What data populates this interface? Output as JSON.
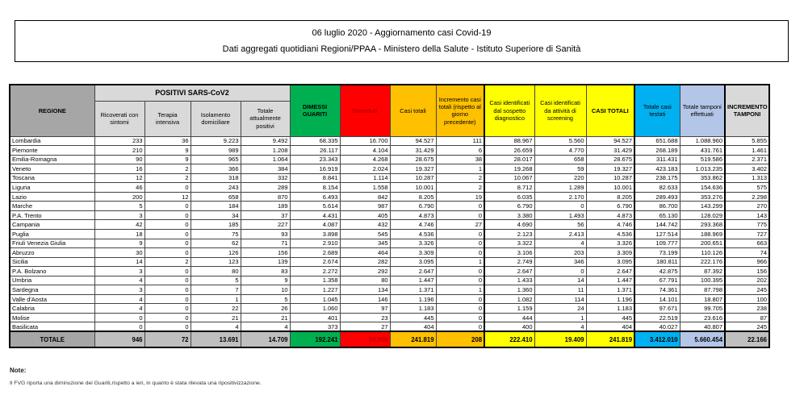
{
  "page_header": {
    "line1": "06 luglio 2020 - Aggiornamento casi Covid-19",
    "line2": "Dati aggregati quotidiani Regioni/PPAA - Ministero della Salute - Istituto Superiore di Sanità"
  },
  "table": {
    "group_header": "POSITIVI SARS-CoV2",
    "columns": [
      "REGIONE",
      "Ricoverati con sintomi",
      "Terapia intensiva",
      "Isolamento domiciliare",
      "Totale attualmente positivi",
      "DIMESSI GUARITI",
      "Deceduti",
      "Casi totali",
      "Incremento casi totali (rispetto al giorno precedente)",
      "Casi identificati dal sospetto diagnostico",
      "Casi identificati da attività di screening",
      "CASI TOTALI",
      "Totale casi testati",
      "Totale tamponi effettuati",
      "INCREMENTO TAMPONI"
    ],
    "rows": [
      [
        "Lombardia",
        "233",
        "36",
        "9.223",
        "9.492",
        "68.335",
        "16.700",
        "94.527",
        "111",
        "88.967",
        "5.560",
        "94.527",
        "651.688",
        "1.088.960",
        "5.855"
      ],
      [
        "Piemonte",
        "210",
        "9",
        "989",
        "1.208",
        "26.117",
        "4.104",
        "31.429",
        "6",
        "26.659",
        "4.770",
        "31.429",
        "268.189",
        "431.761",
        "1.461"
      ],
      [
        "Emilia-Romagna",
        "90",
        "9",
        "965",
        "1.064",
        "23.343",
        "4.268",
        "28.675",
        "38",
        "28.017",
        "658",
        "28.675",
        "311.431",
        "519.586",
        "2.371"
      ],
      [
        "Veneto",
        "16",
        "2",
        "366",
        "384",
        "16.919",
        "2.024",
        "19.327",
        "1",
        "19.268",
        "59",
        "19.327",
        "423.183",
        "1.013.235",
        "3.402"
      ],
      [
        "Toscana",
        "12",
        "2",
        "318",
        "332",
        "8.841",
        "1.114",
        "10.287",
        "2",
        "10.067",
        "220",
        "10.287",
        "238.175",
        "353.862",
        "1.313"
      ],
      [
        "Liguria",
        "46",
        "0",
        "243",
        "289",
        "8.154",
        "1.558",
        "10.001",
        "2",
        "8.712",
        "1.289",
        "10.001",
        "82.633",
        "154.636",
        "575"
      ],
      [
        "Lazio",
        "200",
        "12",
        "658",
        "870",
        "6.493",
        "842",
        "8.205",
        "19",
        "6.035",
        "2.170",
        "8.205",
        "289.493",
        "353.276",
        "2.298"
      ],
      [
        "Marche",
        "5",
        "0",
        "184",
        "189",
        "5.614",
        "987",
        "6.790",
        "0",
        "6.790",
        "0",
        "6.790",
        "86.700",
        "143.299",
        "270"
      ],
      [
        "P.A. Trento",
        "3",
        "0",
        "34",
        "37",
        "4.431",
        "405",
        "4.873",
        "0",
        "3.380",
        "1.493",
        "4.873",
        "65.130",
        "128.029",
        "143"
      ],
      [
        "Campania",
        "42",
        "0",
        "185",
        "227",
        "4.087",
        "432",
        "4.746",
        "27",
        "4.690",
        "56",
        "4.746",
        "144.742",
        "293.368",
        "775"
      ],
      [
        "Puglia",
        "18",
        "0",
        "75",
        "93",
        "3.898",
        "545",
        "4.536",
        "0",
        "2.123",
        "2.413",
        "4.536",
        "127.514",
        "188.969",
        "727"
      ],
      [
        "Friuli Venezia Giulia",
        "9",
        "0",
        "62",
        "71",
        "2.910",
        "345",
        "3.326",
        "0",
        "3.322",
        "4",
        "3.326",
        "109.777",
        "200.651",
        "663"
      ],
      [
        "Abruzzo",
        "30",
        "0",
        "126",
        "156",
        "2.689",
        "464",
        "3.309",
        "0",
        "3.106",
        "203",
        "3.309",
        "73.199",
        "110.126",
        "74"
      ],
      [
        "Sicilia",
        "14",
        "2",
        "123",
        "139",
        "2.674",
        "282",
        "3.095",
        "1",
        "2.749",
        "346",
        "3.095",
        "180.811",
        "222.176",
        "966"
      ],
      [
        "P.A. Bolzano",
        "3",
        "0",
        "80",
        "83",
        "2.272",
        "292",
        "2.647",
        "0",
        "2.647",
        "0",
        "2.647",
        "42.875",
        "87.392",
        "156"
      ],
      [
        "Umbria",
        "4",
        "0",
        "5",
        "9",
        "1.358",
        "80",
        "1.447",
        "0",
        "1.433",
        "14",
        "1.447",
        "67.791",
        "100.395",
        "202"
      ],
      [
        "Sardegna",
        "3",
        "0",
        "7",
        "10",
        "1.227",
        "134",
        "1.371",
        "1",
        "1.360",
        "11",
        "1.371",
        "74.361",
        "87.798",
        "245"
      ],
      [
        "Valle d'Aosta",
        "4",
        "0",
        "1",
        "5",
        "1.045",
        "146",
        "1.196",
        "0",
        "1.082",
        "114",
        "1.196",
        "14.101",
        "18.807",
        "100"
      ],
      [
        "Calabria",
        "4",
        "0",
        "22",
        "26",
        "1.060",
        "97",
        "1.183",
        "0",
        "1.159",
        "24",
        "1.183",
        "97.671",
        "99.705",
        "238"
      ],
      [
        "Molise",
        "0",
        "0",
        "21",
        "21",
        "401",
        "23",
        "445",
        "0",
        "444",
        "1",
        "445",
        "22.519",
        "23.616",
        "87"
      ],
      [
        "Basilicata",
        "0",
        "0",
        "4",
        "4",
        "373",
        "27",
        "404",
        "0",
        "400",
        "4",
        "404",
        "40.027",
        "40.807",
        "245"
      ]
    ],
    "total_row": [
      "TOTALE",
      "946",
      "72",
      "13.691",
      "14.709",
      "192.241",
      "34.869",
      "241.819",
      "208",
      "222.410",
      "19.409",
      "241.819",
      "3.412.010",
      "5.660.454",
      "22.166"
    ]
  },
  "notes": {
    "title": "Note:",
    "line1": "Il FVG  riporta una diminuzione dei Guariti,rispetto a ieri,  in quanto è stata rilevata una ripositivizzazione."
  },
  "colors": {
    "green": "#00B050",
    "red": "#FF0000",
    "red_text": "#C00000",
    "orange": "#FFC000",
    "yellow": "#FFFF00",
    "cyan": "#00B0F0",
    "lavender": "#B4C6E7",
    "gray_dark": "#A6A6A6",
    "gray_light": "#D9D9D9",
    "gray_mid": "#BFBFBF"
  }
}
